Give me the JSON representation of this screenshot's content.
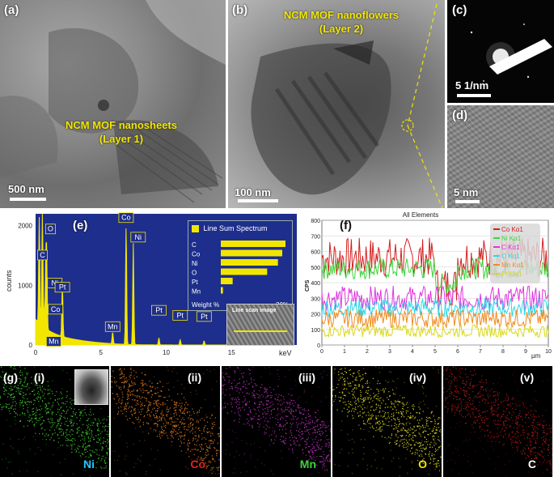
{
  "panels": {
    "a": {
      "label": "(a)",
      "title_line1": "NCM MOF nanosheets",
      "title_line2": "(Layer 1)",
      "scale": "500 nm"
    },
    "b": {
      "label": "(b)",
      "title_line1": "NCM MOF nanoflowers",
      "title_line2": "(Layer 2)",
      "scale": "100 nm"
    },
    "c": {
      "label": "(c)",
      "scale": "5 1/nm"
    },
    "d": {
      "label": "(d)",
      "scale": "5 nm"
    },
    "e": {
      "label": "(e)"
    },
    "f": {
      "label": "(f)"
    },
    "g": {
      "label": "(g)"
    }
  },
  "maps": [
    {
      "roman": "(i)",
      "element": "Ni",
      "color": "#22c8ff",
      "dot": "#3dcc2a"
    },
    {
      "roman": "(ii)",
      "element": "Co",
      "color": "#e8201e",
      "dot": "#e07a1a"
    },
    {
      "roman": "(iii)",
      "element": "Mn",
      "color": "#3dd43d",
      "dot": "#b530b5"
    },
    {
      "roman": "(iv)",
      "element": "O",
      "color": "#f2e600",
      "dot": "#d9d61a"
    },
    {
      "roman": "(v)",
      "element": "C",
      "color": "#ffffff",
      "dot": "#b0181a"
    }
  ],
  "chart_data": [
    {
      "type": "line",
      "id": "eds-spectrum",
      "xlabel": "keV",
      "ylabel": "counts",
      "xlim": [
        0,
        20
      ],
      "ylim": [
        0,
        2200
      ],
      "x_ticks": [
        "0",
        "5",
        "10",
        "15"
      ],
      "y_ticks": [
        "0",
        "1000",
        "2000"
      ],
      "peaks": [
        {
          "label": "O",
          "x": 0.52,
          "y": 2000
        },
        {
          "label": "C",
          "x": 0.28,
          "y": 1780
        },
        {
          "label": "Ni",
          "x": 0.85,
          "y": 1120
        },
        {
          "label": "Co",
          "x": 0.78,
          "y": 980
        },
        {
          "label": "Pt",
          "x": 2.05,
          "y": 860
        },
        {
          "label": "Mn",
          "x": 0.64,
          "y": 250
        },
        {
          "label": "Mn",
          "x": 5.9,
          "y": 200
        },
        {
          "label": "Co",
          "x": 6.93,
          "y": 2000
        },
        {
          "label": "Ni",
          "x": 7.48,
          "y": 1700
        },
        {
          "label": "Pt",
          "x": 9.44,
          "y": 120
        },
        {
          "label": "Pt",
          "x": 11.07,
          "y": 90
        },
        {
          "label": "Pt",
          "x": 12.9,
          "y": 70
        }
      ],
      "inset": {
        "title": "Line Sum Spectrum",
        "categories": [
          "C",
          "Co",
          "Ni",
          "O",
          "Pt",
          "Mn"
        ],
        "values": [
          30,
          28.5,
          26.5,
          21.5,
          5.5,
          1.0
        ],
        "xlabel": "Weight %",
        "xmax_label": "30%",
        "image_caption": "Line scan image"
      }
    },
    {
      "type": "line",
      "id": "line-scan",
      "title": "All Elements",
      "xlabel": "μm",
      "ylabel": "CPS",
      "xlim": [
        0,
        10
      ],
      "ylim": [
        0,
        800
      ],
      "x_ticks": [
        "0",
        "1",
        "2",
        "3",
        "4",
        "5",
        "6",
        "7",
        "8",
        "9",
        "10"
      ],
      "y_ticks": [
        "0",
        "100",
        "200",
        "300",
        "400",
        "500",
        "600",
        "700",
        "800"
      ],
      "legend_position": "top-right",
      "series": [
        {
          "name": "Co Kα1",
          "color": "#d41f1f",
          "mean": 560,
          "amp": 130
        },
        {
          "name": "Ni Kα1",
          "color": "#39d639",
          "mean": 490,
          "amp": 70
        },
        {
          "name": "C Kα1",
          "color": "#e032e0",
          "mean": 300,
          "amp": 80
        },
        {
          "name": "O Kα1",
          "color": "#2ad8e8",
          "mean": 240,
          "amp": 60
        },
        {
          "name": "Mn Kα1",
          "color": "#f08a1e",
          "mean": 170,
          "amp": 60
        },
        {
          "name": "Pt Mα1",
          "color": "#d8d81a",
          "mean": 90,
          "amp": 40
        }
      ]
    }
  ]
}
